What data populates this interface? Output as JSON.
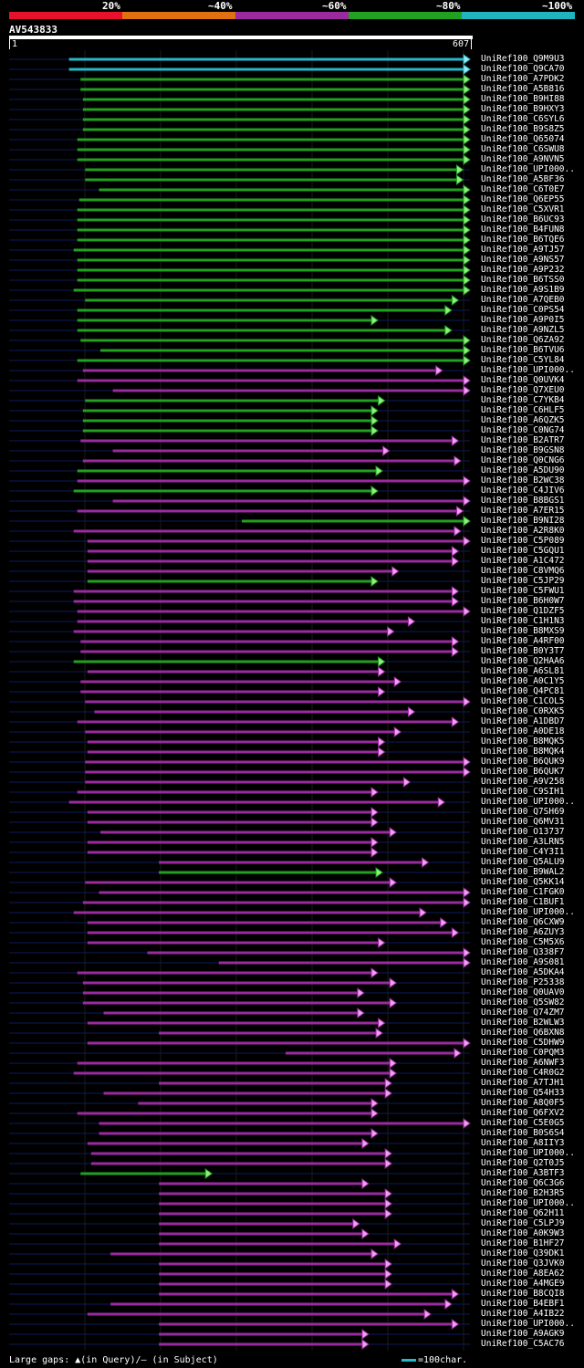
{
  "legend": {
    "labels": [
      "20%",
      "~40%",
      "~60%",
      "~80%",
      "~100%"
    ],
    "colors": [
      "#e8102a",
      "#e07010",
      "#9a2aa0",
      "#22a020",
      "#20b4c0"
    ]
  },
  "query": {
    "id": "AV543833",
    "start": "1",
    "end": "607"
  },
  "footer": {
    "gaps_text": "Large gaps: ▲(in Query)/– (in Subject)",
    "scale_text": "=100char."
  },
  "hits": [
    {
      "name": "UniRef100_Q9M9U3",
      "color": "cyan",
      "s": 0.13,
      "e": 1.0
    },
    {
      "name": "UniRef100_Q9CA70",
      "color": "cyan",
      "s": 0.13,
      "e": 1.0
    },
    {
      "name": "UniRef100_A7PDK2",
      "color": "green",
      "s": 0.155,
      "e": 1.0
    },
    {
      "name": "UniRef100_A5B816",
      "color": "green",
      "s": 0.155,
      "e": 1.0
    },
    {
      "name": "UniRef100_B9HI88",
      "color": "green",
      "s": 0.16,
      "e": 1.0
    },
    {
      "name": "UniRef100_B9HXY3",
      "color": "green",
      "s": 0.16,
      "e": 1.0
    },
    {
      "name": "UniRef100_C6SYL6",
      "color": "green",
      "s": 0.16,
      "e": 1.0
    },
    {
      "name": "UniRef100_B9S8Z5",
      "color": "green",
      "s": 0.16,
      "e": 1.0
    },
    {
      "name": "UniRef100_Q65074",
      "color": "green",
      "s": 0.148,
      "e": 1.0
    },
    {
      "name": "UniRef100_C6SWU8",
      "color": "green",
      "s": 0.148,
      "e": 1.0
    },
    {
      "name": "UniRef100_A9NVN5",
      "color": "green",
      "s": 0.148,
      "e": 1.0
    },
    {
      "name": "UniRef100_UPI000..",
      "color": "green",
      "s": 0.165,
      "e": 0.985
    },
    {
      "name": "UniRef100_A5BF36",
      "color": "green",
      "s": 0.165,
      "e": 0.985
    },
    {
      "name": "UniRef100_C6T0E7",
      "color": "green",
      "s": 0.195,
      "e": 1.0
    },
    {
      "name": "UniRef100_Q6EP55",
      "color": "green",
      "s": 0.152,
      "e": 1.0
    },
    {
      "name": "UniRef100_C5XVR1",
      "color": "green",
      "s": 0.148,
      "e": 1.0
    },
    {
      "name": "UniRef100_B6UC93",
      "color": "green",
      "s": 0.148,
      "e": 1.0
    },
    {
      "name": "UniRef100_B4FUN8",
      "color": "green",
      "s": 0.148,
      "e": 1.0
    },
    {
      "name": "UniRef100_B6TQE6",
      "color": "green",
      "s": 0.148,
      "e": 1.0
    },
    {
      "name": "UniRef100_A9TJ57",
      "color": "green",
      "s": 0.14,
      "e": 1.0
    },
    {
      "name": "UniRef100_A9NS57",
      "color": "green",
      "s": 0.148,
      "e": 1.0
    },
    {
      "name": "UniRef100_A9P232",
      "color": "green",
      "s": 0.148,
      "e": 1.0
    },
    {
      "name": "UniRef100_B6TSS0",
      "color": "green",
      "s": 0.148,
      "e": 1.0
    },
    {
      "name": "UniRef100_A9S1B9",
      "color": "green",
      "s": 0.14,
      "e": 1.0
    },
    {
      "name": "UniRef100_A7QEB0",
      "color": "green",
      "s": 0.165,
      "e": 0.975
    },
    {
      "name": "UniRef100_C0PS54",
      "color": "green",
      "s": 0.148,
      "e": 0.96
    },
    {
      "name": "UniRef100_A9P0I5",
      "color": "green",
      "s": 0.148,
      "e": 0.8
    },
    {
      "name": "UniRef100_A9NZL5",
      "color": "green",
      "s": 0.148,
      "e": 0.96
    },
    {
      "name": "UniRef100_Q6ZA92",
      "color": "green",
      "s": 0.155,
      "e": 1.0
    },
    {
      "name": "UniRef100_B6TVU6",
      "color": "green",
      "s": 0.198,
      "e": 1.0
    },
    {
      "name": "UniRef100_C5YL84",
      "color": "green",
      "s": 0.148,
      "e": 1.0
    },
    {
      "name": "UniRef100_UPI000..",
      "color": "magenta",
      "s": 0.16,
      "e": 0.94
    },
    {
      "name": "UniRef100_Q0UVK4",
      "color": "magenta",
      "s": 0.148,
      "e": 1.0
    },
    {
      "name": "UniRef100_Q7XEU0",
      "color": "magenta",
      "s": 0.225,
      "e": 1.0
    },
    {
      "name": "UniRef100_C7YKB4",
      "color": "green",
      "s": 0.165,
      "e": 0.815
    },
    {
      "name": "UniRef100_C6HLF5",
      "color": "green",
      "s": 0.16,
      "e": 0.8
    },
    {
      "name": "UniRef100_A6QZK5",
      "color": "green",
      "s": 0.16,
      "e": 0.8
    },
    {
      "name": "UniRef100_C0NG74",
      "color": "green",
      "s": 0.16,
      "e": 0.8
    },
    {
      "name": "UniRef100_B2ATR7",
      "color": "magenta",
      "s": 0.155,
      "e": 0.975
    },
    {
      "name": "UniRef100_B9GSN8",
      "color": "magenta",
      "s": 0.225,
      "e": 0.825
    },
    {
      "name": "UniRef100_Q0CNG6",
      "color": "magenta",
      "s": 0.16,
      "e": 0.98
    },
    {
      "name": "UniRef100_A5DU90",
      "color": "green",
      "s": 0.148,
      "e": 0.81
    },
    {
      "name": "UniRef100_B2WC38",
      "color": "magenta",
      "s": 0.148,
      "e": 1.0
    },
    {
      "name": "UniRef100_C4JIV6",
      "color": "green",
      "s": 0.14,
      "e": 0.8
    },
    {
      "name": "UniRef100_B8BGS1",
      "color": "magenta",
      "s": 0.225,
      "e": 1.0
    },
    {
      "name": "UniRef100_A7ER15",
      "color": "magenta",
      "s": 0.148,
      "e": 0.985
    },
    {
      "name": "UniRef100_B9NI28",
      "color": "green",
      "s": 0.505,
      "e": 1.0
    },
    {
      "name": "UniRef100_A2R8K0",
      "color": "magenta",
      "s": 0.14,
      "e": 0.98
    },
    {
      "name": "UniRef100_C5P089",
      "color": "magenta",
      "s": 0.17,
      "e": 1.0
    },
    {
      "name": "UniRef100_C5GQU1",
      "color": "magenta",
      "s": 0.17,
      "e": 0.975
    },
    {
      "name": "UniRef100_A1C472",
      "color": "magenta",
      "s": 0.17,
      "e": 0.975
    },
    {
      "name": "UniRef100_C8VMQ6",
      "color": "magenta",
      "s": 0.17,
      "e": 0.845
    },
    {
      "name": "UniRef100_C5JP29",
      "color": "green",
      "s": 0.17,
      "e": 0.8
    },
    {
      "name": "UniRef100_C5FWU1",
      "color": "magenta",
      "s": 0.14,
      "e": 0.975
    },
    {
      "name": "UniRef100_B6H0W7",
      "color": "magenta",
      "s": 0.14,
      "e": 0.975
    },
    {
      "name": "UniRef100_Q1DZF5",
      "color": "magenta",
      "s": 0.148,
      "e": 1.0
    },
    {
      "name": "UniRef100_C1H1N3",
      "color": "magenta",
      "s": 0.148,
      "e": 0.88
    },
    {
      "name": "UniRef100_B8MXS9",
      "color": "magenta",
      "s": 0.14,
      "e": 0.835
    },
    {
      "name": "UniRef100_A4RF00",
      "color": "magenta",
      "s": 0.155,
      "e": 0.975
    },
    {
      "name": "UniRef100_B0Y3T7",
      "color": "magenta",
      "s": 0.155,
      "e": 0.975
    },
    {
      "name": "UniRef100_Q2HAA6",
      "color": "green",
      "s": 0.14,
      "e": 0.815
    },
    {
      "name": "UniRef100_A6SL81",
      "color": "magenta",
      "s": 0.17,
      "e": 0.815
    },
    {
      "name": "UniRef100_A0C1Y5",
      "color": "magenta",
      "s": 0.155,
      "e": 0.85
    },
    {
      "name": "UniRef100_Q4PC81",
      "color": "magenta",
      "s": 0.155,
      "e": 0.815
    },
    {
      "name": "UniRef100_C1COL5",
      "color": "magenta",
      "s": 0.165,
      "e": 1.0
    },
    {
      "name": "UniRef100_C0RXK5",
      "color": "magenta",
      "s": 0.185,
      "e": 0.88
    },
    {
      "name": "UniRef100_A1DBD7",
      "color": "magenta",
      "s": 0.148,
      "e": 0.975
    },
    {
      "name": "UniRef100_A0DE18",
      "color": "magenta",
      "s": 0.165,
      "e": 0.85
    },
    {
      "name": "UniRef100_B8MQK5",
      "color": "magenta",
      "s": 0.17,
      "e": 0.815
    },
    {
      "name": "UniRef100_B8MQK4",
      "color": "magenta",
      "s": 0.17,
      "e": 0.815
    },
    {
      "name": "UniRef100_B6QUK9",
      "color": "magenta",
      "s": 0.165,
      "e": 1.0
    },
    {
      "name": "UniRef100_B6QUK7",
      "color": "magenta",
      "s": 0.165,
      "e": 1.0
    },
    {
      "name": "UniRef100_A9V258",
      "color": "magenta",
      "s": 0.165,
      "e": 0.87
    },
    {
      "name": "UniRef100_C9SIH1",
      "color": "magenta",
      "s": 0.148,
      "e": 0.8
    },
    {
      "name": "UniRef100_UPI000..",
      "color": "magenta",
      "s": 0.13,
      "e": 0.945
    },
    {
      "name": "UniRef100_Q7SH69",
      "color": "magenta",
      "s": 0.17,
      "e": 0.8
    },
    {
      "name": "UniRef100_Q6MV31",
      "color": "magenta",
      "s": 0.17,
      "e": 0.8
    },
    {
      "name": "UniRef100_O13737",
      "color": "magenta",
      "s": 0.198,
      "e": 0.84
    },
    {
      "name": "UniRef100_A3LRN5",
      "color": "magenta",
      "s": 0.17,
      "e": 0.8
    },
    {
      "name": "UniRef100_C4Y3I1",
      "color": "magenta",
      "s": 0.17,
      "e": 0.8
    },
    {
      "name": "UniRef100_Q5ALU9",
      "color": "magenta",
      "s": 0.325,
      "e": 0.91
    },
    {
      "name": "UniRef100_B9WAL2",
      "color": "green",
      "s": 0.325,
      "e": 0.81
    },
    {
      "name": "UniRef100_Q5KK14",
      "color": "magenta",
      "s": 0.165,
      "e": 0.84
    },
    {
      "name": "UniRef100_C1FGK0",
      "color": "magenta",
      "s": 0.195,
      "e": 1.0
    },
    {
      "name": "UniRef100_C1BUF1",
      "color": "magenta",
      "s": 0.16,
      "e": 1.0
    },
    {
      "name": "UniRef100_UPI000..",
      "color": "magenta",
      "s": 0.14,
      "e": 0.905
    },
    {
      "name": "UniRef100_Q6CXW9",
      "color": "magenta",
      "s": 0.17,
      "e": 0.95
    },
    {
      "name": "UniRef100_A6ZUY3",
      "color": "magenta",
      "s": 0.17,
      "e": 0.975
    },
    {
      "name": "UniRef100_C5M5X6",
      "color": "magenta",
      "s": 0.17,
      "e": 0.815
    },
    {
      "name": "UniRef100_Q338F7",
      "color": "magenta",
      "s": 0.3,
      "e": 1.0
    },
    {
      "name": "UniRef100_A9S081",
      "color": "magenta",
      "s": 0.455,
      "e": 1.0
    },
    {
      "name": "UniRef100_A5DKA4",
      "color": "magenta",
      "s": 0.148,
      "e": 0.8
    },
    {
      "name": "UniRef100_P25338",
      "color": "magenta",
      "s": 0.16,
      "e": 0.84
    },
    {
      "name": "UniRef100_Q0UAV0",
      "color": "magenta",
      "s": 0.16,
      "e": 0.77
    },
    {
      "name": "UniRef100_Q5SW82",
      "color": "magenta",
      "s": 0.16,
      "e": 0.84
    },
    {
      "name": "UniRef100_Q74ZM7",
      "color": "magenta",
      "s": 0.205,
      "e": 0.77
    },
    {
      "name": "UniRef100_B2WLW3",
      "color": "magenta",
      "s": 0.17,
      "e": 0.815
    },
    {
      "name": "UniRef100_Q6BXN8",
      "color": "magenta",
      "s": 0.325,
      "e": 0.81
    },
    {
      "name": "UniRef100_C5DHW9",
      "color": "magenta",
      "s": 0.17,
      "e": 1.0
    },
    {
      "name": "UniRef100_C0PQM3",
      "color": "magenta",
      "s": 0.6,
      "e": 0.98
    },
    {
      "name": "UniRef100_A6NWF3",
      "color": "magenta",
      "s": 0.148,
      "e": 0.84
    },
    {
      "name": "UniRef100_C4R0G2",
      "color": "magenta",
      "s": 0.14,
      "e": 0.84
    },
    {
      "name": "UniRef100_A7TJH1",
      "color": "magenta",
      "s": 0.325,
      "e": 0.83
    },
    {
      "name": "UniRef100_Q54H33",
      "color": "magenta",
      "s": 0.205,
      "e": 0.83
    },
    {
      "name": "UniRef100_A8Q0F5",
      "color": "magenta",
      "s": 0.28,
      "e": 0.8
    },
    {
      "name": "UniRef100_Q6FXV2",
      "color": "magenta",
      "s": 0.148,
      "e": 0.8
    },
    {
      "name": "UniRef100_C5E0G5",
      "color": "magenta",
      "s": 0.195,
      "e": 1.0
    },
    {
      "name": "UniRef100_B0S6S4",
      "color": "magenta",
      "s": 0.195,
      "e": 0.8
    },
    {
      "name": "UniRef100_A8IIY3",
      "color": "magenta",
      "s": 0.17,
      "e": 0.78
    },
    {
      "name": "UniRef100_UPI000..",
      "color": "magenta",
      "s": 0.178,
      "e": 0.83
    },
    {
      "name": "UniRef100_Q2T0J5",
      "color": "magenta",
      "s": 0.178,
      "e": 0.83
    },
    {
      "name": "UniRef100_A3BTF3",
      "color": "green",
      "s": 0.155,
      "e": 0.44
    },
    {
      "name": "UniRef100_Q6C3G6",
      "color": "magenta",
      "s": 0.325,
      "e": 0.78
    },
    {
      "name": "UniRef100_B2H3R5",
      "color": "magenta",
      "s": 0.325,
      "e": 0.83
    },
    {
      "name": "UniRef100_UPI000..",
      "color": "magenta",
      "s": 0.325,
      "e": 0.83
    },
    {
      "name": "UniRef100_Q62H11",
      "color": "magenta",
      "s": 0.325,
      "e": 0.83
    },
    {
      "name": "UniRef100_C5LPJ9",
      "color": "magenta",
      "s": 0.325,
      "e": 0.76
    },
    {
      "name": "UniRef100_A0K9W3",
      "color": "magenta",
      "s": 0.325,
      "e": 0.78
    },
    {
      "name": "UniRef100_B1HF27",
      "color": "magenta",
      "s": 0.325,
      "e": 0.85
    },
    {
      "name": "UniRef100_Q39DK1",
      "color": "magenta",
      "s": 0.22,
      "e": 0.8
    },
    {
      "name": "UniRef100_Q3JVK0",
      "color": "magenta",
      "s": 0.325,
      "e": 0.83
    },
    {
      "name": "UniRef100_A8EA62",
      "color": "magenta",
      "s": 0.325,
      "e": 0.83
    },
    {
      "name": "UniRef100_A4MGE9",
      "color": "magenta",
      "s": 0.325,
      "e": 0.83
    },
    {
      "name": "UniRef100_B8CQI8",
      "color": "magenta",
      "s": 0.325,
      "e": 0.975
    },
    {
      "name": "UniRef100_B4EBF1",
      "color": "magenta",
      "s": 0.22,
      "e": 0.96
    },
    {
      "name": "UniRef100_A4IB22",
      "color": "magenta",
      "s": 0.17,
      "e": 0.915
    },
    {
      "name": "UniRef100_UPI000..",
      "color": "magenta",
      "s": 0.325,
      "e": 0.975
    },
    {
      "name": "UniRef100_A9AGK9",
      "color": "magenta",
      "s": 0.325,
      "e": 0.78
    },
    {
      "name": "UniRef100_C5AC76",
      "color": "magenta",
      "s": 0.325,
      "e": 0.78
    }
  ]
}
